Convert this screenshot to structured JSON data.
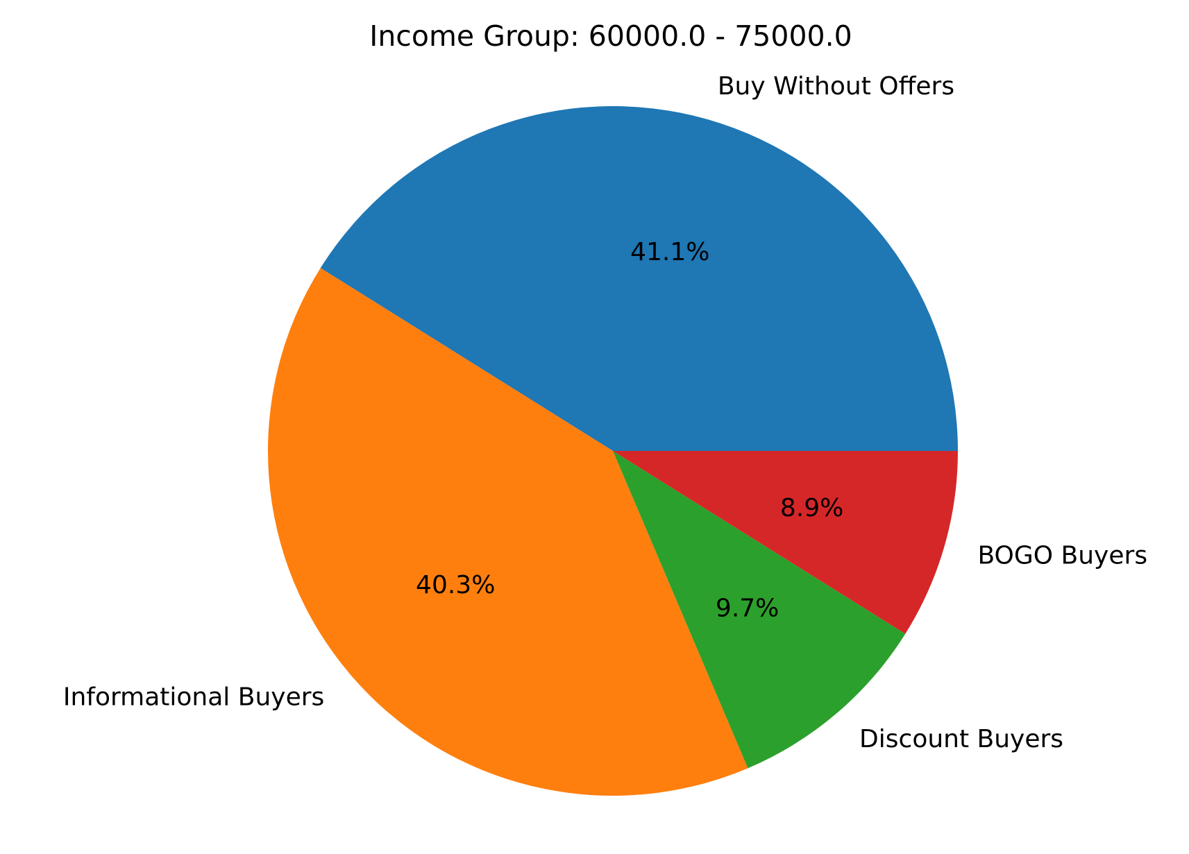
{
  "chart_data": {
    "type": "pie",
    "title": "Income Group: 60000.0 - 75000.0",
    "slices": [
      {
        "label": "Buy Without Offers",
        "value": 41.1,
        "pct_label": "41.1%",
        "color": "#1f77b4"
      },
      {
        "label": "Informational Buyers",
        "value": 40.3,
        "pct_label": "40.3%",
        "color": "#ff7f0e"
      },
      {
        "label": "Discount Buyers",
        "value": 9.7,
        "pct_label": "9.7%",
        "color": "#2ca02c"
      },
      {
        "label": "BOGO Buyers",
        "value": 8.9,
        "pct_label": "8.9%",
        "color": "#d62728"
      }
    ],
    "start_angle_deg": 0,
    "direction": "counterclockwise",
    "legend": "none"
  }
}
